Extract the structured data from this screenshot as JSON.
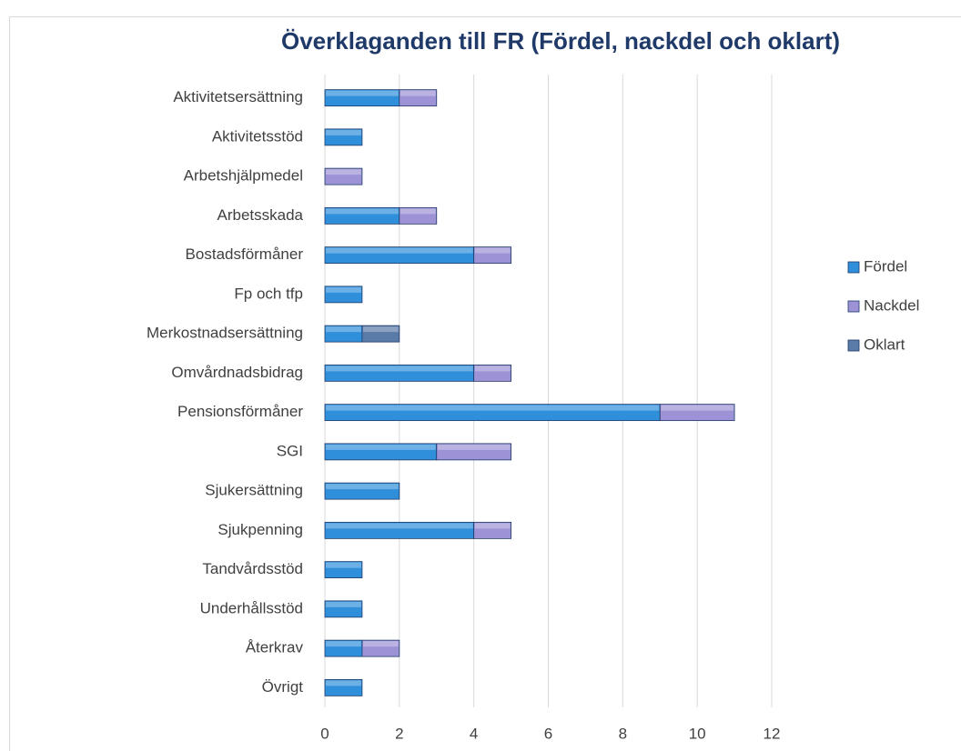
{
  "chart_data": {
    "type": "bar",
    "orientation": "horizontal",
    "stacked": true,
    "title": "Överklaganden till FR (Fördel, nackdel och oklart)",
    "categories": [
      "Aktivitetsersättning",
      "Aktivitetsstöd",
      "Arbetshjälpmedel",
      "Arbetsskada",
      "Bostadsförmåner",
      "Fp och tfp",
      "Merkostnadsersättning",
      "Omvårdnadsbidrag",
      "Pensionsförmåner",
      "SGI",
      "Sjukersättning",
      "Sjukpenning",
      "Tandvårdsstöd",
      "Underhållsstöd",
      "Återkrav",
      "Övrigt"
    ],
    "series": [
      {
        "name": "Fördel",
        "color": "#2f8fdb",
        "values": [
          2,
          1,
          0,
          2,
          4,
          1,
          1,
          4,
          9,
          3,
          2,
          4,
          1,
          1,
          1,
          1
        ]
      },
      {
        "name": "Nackdel",
        "color": "#9d92d6",
        "values": [
          1,
          0,
          1,
          1,
          1,
          0,
          0,
          1,
          2,
          2,
          0,
          1,
          0,
          0,
          1,
          0
        ]
      },
      {
        "name": "Oklart",
        "color": "#5a7aa8",
        "values": [
          0,
          0,
          0,
          0,
          0,
          0,
          1,
          0,
          0,
          0,
          0,
          0,
          0,
          0,
          0,
          0
        ]
      }
    ],
    "xlim": [
      0,
      12
    ],
    "xticks": [
      0,
      2,
      4,
      6,
      8,
      10,
      12
    ],
    "grid": true,
    "legend": "right"
  }
}
